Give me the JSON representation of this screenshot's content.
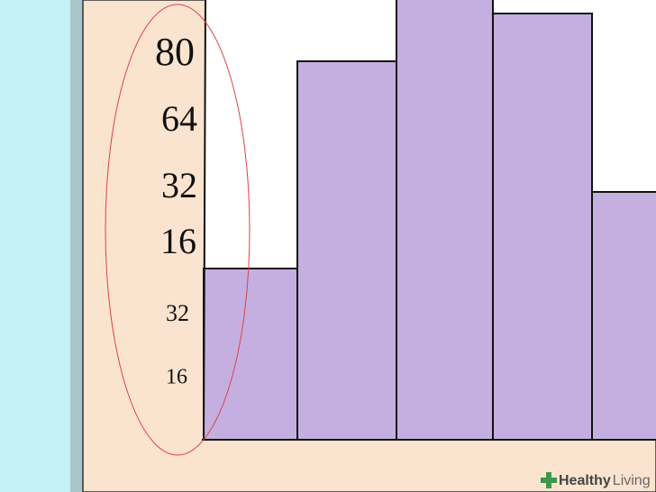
{
  "axis_labels": [
    "80",
    "64",
    "32",
    "16",
    "32",
    "16"
  ],
  "watermark": {
    "bold": "Healthy",
    "light": "Living"
  }
}
